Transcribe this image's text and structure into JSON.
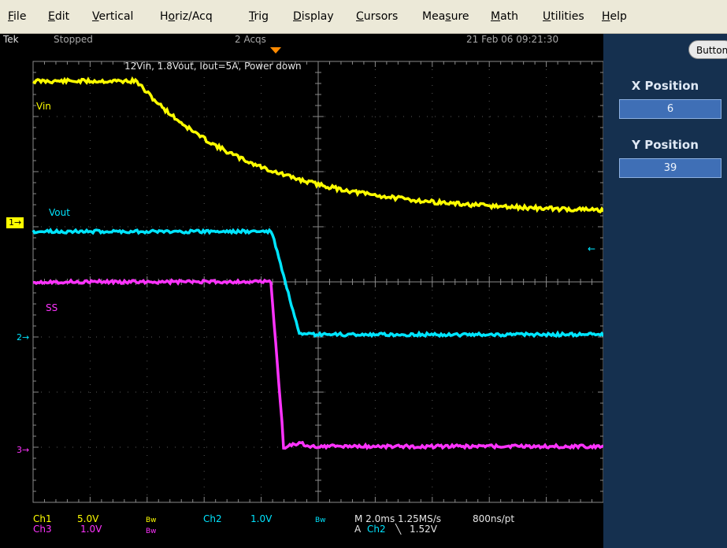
{
  "menu": [
    {
      "id": "file",
      "pre": "",
      "acc": "F",
      "post": "ile"
    },
    {
      "id": "edit",
      "pre": "",
      "acc": "E",
      "post": "dit"
    },
    {
      "id": "vertical",
      "pre": "",
      "acc": "V",
      "post": "ertical"
    },
    {
      "id": "horiz-acq",
      "pre": "H",
      "acc": "o",
      "post": "riz/Acq"
    },
    {
      "id": "trig",
      "pre": "",
      "acc": "T",
      "post": "rig"
    },
    {
      "id": "display",
      "pre": "",
      "acc": "D",
      "post": "isplay"
    },
    {
      "id": "cursors",
      "pre": "",
      "acc": "C",
      "post": "ursors"
    },
    {
      "id": "measure",
      "pre": "Mea",
      "acc": "s",
      "post": "ure"
    },
    {
      "id": "math",
      "pre": "",
      "acc": "M",
      "post": "ath"
    },
    {
      "id": "utilities",
      "pre": "",
      "acc": "U",
      "post": "tilities"
    },
    {
      "id": "help",
      "pre": "",
      "acc": "H",
      "post": "elp"
    }
  ],
  "status": {
    "brand": "Tek",
    "state": "Stopped",
    "acqs": "2 Acqs",
    "datetime": "21 Feb 06 09:21:30"
  },
  "panel": {
    "buttons_label": "Buttons",
    "x_position_label": "X Position",
    "x_position_value": "6",
    "y_position_label": "Y Position",
    "y_position_value": "39"
  },
  "screen": {
    "title": "12Vin, 1.8Vout, Iout=5A, Power down",
    "labels": {
      "vin": "Vin",
      "vout": "Vout",
      "ss": "SS"
    },
    "markers": {
      "ch1": "1",
      "ch2": "2",
      "ch3": "3"
    }
  },
  "readouts": {
    "ch1_name": "Ch1",
    "ch1_scale": "5.0V",
    "ch3_name": "Ch3",
    "ch3_scale": "1.0V",
    "ch2_name": "Ch2",
    "ch2_scale": "1.0V",
    "bw": "Bw",
    "timebase": "M 2.0ms 1.25MS/s",
    "resolution": "800ns/pt",
    "trigger_prefix": "A",
    "trigger_source": "Ch2",
    "trigger_slope": "╲",
    "trigger_level": "1.52V"
  },
  "colors": {
    "ch1": "#ffff00",
    "ch2": "#00e5ff",
    "ch3": "#ff33ff",
    "panel": "#15304f",
    "menubar": "#ece9d8"
  }
}
